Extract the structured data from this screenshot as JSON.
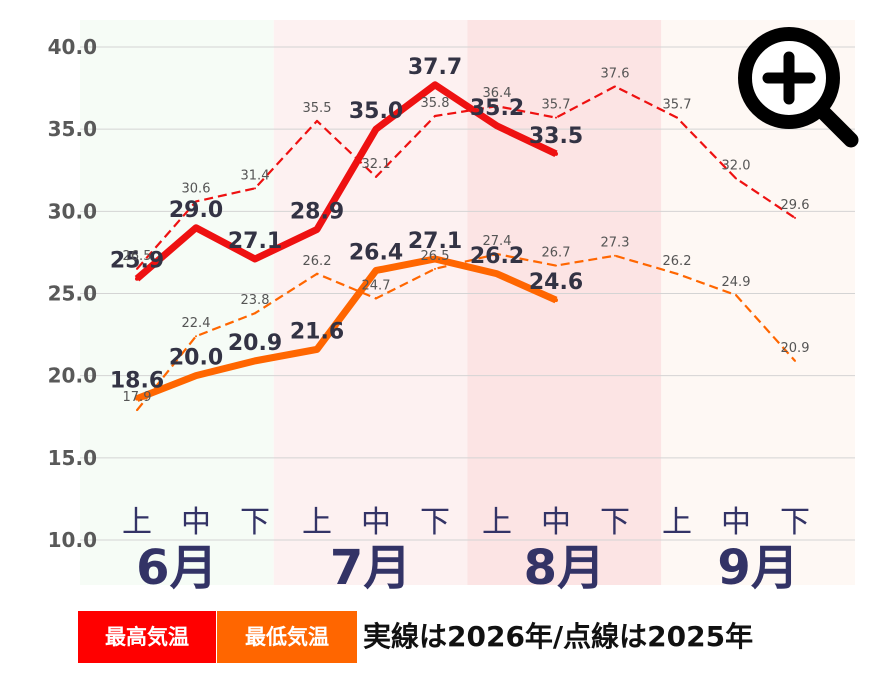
{
  "chart_data": {
    "type": "line",
    "x_groups": [
      "6月",
      "7月",
      "8月",
      "9月"
    ],
    "x_subcategories": [
      "上",
      "中",
      "下"
    ],
    "ylim": [
      10,
      40
    ],
    "yticks": [
      "10.0",
      "15.0",
      "20.0",
      "25.0",
      "30.0",
      "35.0",
      "40.0"
    ],
    "grid": true,
    "month_bands": [
      "#f6fcf6",
      "#fdf1f1",
      "#fce4e4",
      "#fef8f4"
    ],
    "series": [
      {
        "key": "high_2026",
        "style": "solid",
        "color": "#ee1111",
        "values": [
          25.9,
          29.0,
          27.1,
          28.9,
          35.0,
          37.7,
          35.2,
          33.5
        ],
        "labels": [
          "25.9",
          "29.0",
          "27.1",
          "28.9",
          "35.0",
          "37.7",
          "35.2",
          "33.5"
        ]
      },
      {
        "key": "low_2026",
        "style": "solid",
        "color": "#ff6600",
        "values": [
          18.6,
          20.0,
          20.9,
          21.6,
          26.4,
          27.1,
          26.2,
          24.6
        ],
        "labels": [
          "18.6",
          "20.0",
          "20.9",
          "21.6",
          "26.4",
          "27.1",
          "26.2",
          "24.6"
        ]
      },
      {
        "key": "high_2025",
        "style": "dashed",
        "color": "#ee1111",
        "values": [
          26.5,
          30.6,
          31.4,
          35.5,
          32.1,
          35.8,
          36.4,
          35.7,
          37.6,
          35.7,
          32.0,
          29.6
        ],
        "labels": [
          "26.5",
          "30.6",
          "31.4",
          "35.5",
          "32.1",
          "35.8",
          "36.4",
          "35.7",
          "37.6",
          "35.7",
          "32.0",
          "29.6"
        ]
      },
      {
        "key": "low_2025",
        "style": "dashed",
        "color": "#ff6600",
        "values": [
          17.9,
          22.4,
          23.8,
          26.2,
          24.7,
          26.5,
          27.4,
          26.7,
          27.3,
          26.2,
          24.9,
          20.9
        ],
        "labels": [
          "17.9",
          "22.4",
          "23.8",
          "26.2",
          "24.7",
          "26.5",
          "27.4",
          "26.7",
          "27.3",
          "26.2",
          "24.9",
          "20.9"
        ]
      }
    ]
  },
  "legend": {
    "high_label": "最高気温",
    "low_label": "最低気温",
    "high_color": "#ff0000",
    "low_color": "#ff6600",
    "note": "実線は2026年/点線は2025年"
  },
  "zoom_icon": "zoom-in-icon"
}
